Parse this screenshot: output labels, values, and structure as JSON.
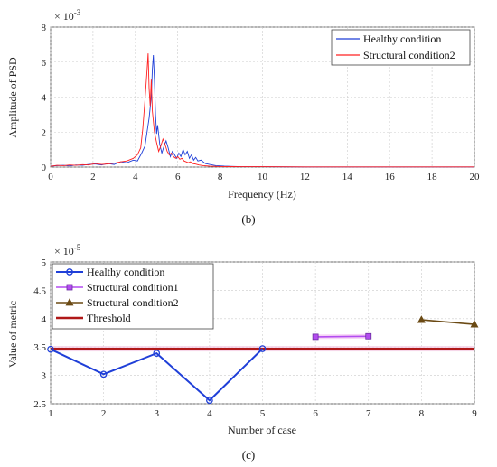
{
  "colors": {
    "healthy": "#1f3fd8",
    "structural1": "#b44cf0",
    "structural2": "#6b4a14",
    "structural2_psd": "#ff2020",
    "threshold": "#b01818",
    "grid": "#cccccc"
  },
  "chart_data": [
    {
      "type": "line",
      "panel_label": "(b)",
      "xlabel": "Frequency (Hz)",
      "ylabel": "Amplitude of PSD",
      "exponent_label": "× 10",
      "exponent_power": "-3",
      "xlim": [
        0,
        20
      ],
      "ylim": [
        0,
        8
      ],
      "xticks": [
        "0",
        "2",
        "4",
        "6",
        "8",
        "10",
        "12",
        "14",
        "16",
        "18",
        "20"
      ],
      "yticks": [
        "0",
        "2",
        "4",
        "6",
        "8"
      ],
      "legend_position": "top-right",
      "series": [
        {
          "name": "Healthy condition",
          "color_key": "healthy",
          "x": [
            0,
            0.3,
            0.6,
            0.9,
            1.2,
            1.5,
            1.8,
            2.1,
            2.4,
            2.7,
            3.0,
            3.3,
            3.6,
            3.9,
            4.1,
            4.3,
            4.45,
            4.55,
            4.65,
            4.75,
            4.8,
            4.85,
            4.9,
            4.95,
            5.0,
            5.05,
            5.15,
            5.25,
            5.35,
            5.45,
            5.55,
            5.65,
            5.75,
            5.85,
            5.95,
            6.05,
            6.15,
            6.25,
            6.35,
            6.45,
            6.55,
            6.65,
            6.75,
            6.85,
            6.95,
            7.1,
            7.3,
            7.5,
            7.8,
            8.2,
            9,
            10,
            12,
            14,
            16,
            18,
            20
          ],
          "y": [
            0.05,
            0.08,
            0.1,
            0.06,
            0.12,
            0.1,
            0.15,
            0.18,
            0.12,
            0.2,
            0.15,
            0.3,
            0.25,
            0.4,
            0.35,
            0.8,
            1.2,
            2.0,
            2.8,
            4.0,
            5.6,
            6.4,
            5.0,
            3.0,
            1.9,
            2.4,
            1.3,
            0.8,
            1.2,
            1.5,
            1.1,
            0.6,
            0.9,
            0.7,
            0.5,
            0.8,
            0.6,
            1.0,
            0.7,
            0.9,
            0.5,
            0.7,
            0.4,
            0.55,
            0.35,
            0.4,
            0.2,
            0.15,
            0.08,
            0.05,
            0.02,
            0.02,
            0.01,
            0.01,
            0.01,
            0.01,
            0.01
          ]
        },
        {
          "name": "Structural condition2",
          "color_key": "structural2_psd",
          "x": [
            0,
            0.3,
            0.6,
            0.9,
            1.2,
            1.5,
            1.8,
            2.1,
            2.4,
            2.7,
            3.0,
            3.3,
            3.6,
            3.9,
            4.1,
            4.25,
            4.35,
            4.45,
            4.55,
            4.6,
            4.65,
            4.7,
            4.75,
            4.8,
            4.9,
            5.0,
            5.1,
            5.2,
            5.3,
            5.4,
            5.5,
            5.6,
            5.7,
            5.8,
            5.9,
            6.0,
            6.1,
            6.2,
            6.3,
            6.4,
            6.5,
            6.6,
            6.7,
            6.8,
            7.0,
            7.2,
            7.5,
            8.0,
            9,
            10,
            12,
            14,
            16,
            18,
            20
          ],
          "y": [
            0.04,
            0.1,
            0.08,
            0.12,
            0.1,
            0.14,
            0.12,
            0.2,
            0.15,
            0.18,
            0.22,
            0.3,
            0.35,
            0.5,
            0.7,
            1.1,
            2.2,
            3.8,
            5.5,
            6.5,
            4.5,
            3.5,
            5.0,
            3.2,
            2.0,
            1.4,
            0.9,
            1.2,
            1.6,
            1.3,
            0.9,
            0.7,
            0.8,
            0.6,
            0.5,
            0.6,
            0.45,
            0.5,
            0.35,
            0.3,
            0.25,
            0.3,
            0.2,
            0.18,
            0.12,
            0.08,
            0.05,
            0.03,
            0.02,
            0.02,
            0.01,
            0.01,
            0.01,
            0.01,
            0.01
          ]
        }
      ]
    },
    {
      "type": "line",
      "panel_label": "(c)",
      "xlabel": "Number of case",
      "ylabel": "Value of metric",
      "exponent_label": "× 10",
      "exponent_power": "-5",
      "xlim": [
        1,
        9
      ],
      "ylim": [
        2.5,
        5
      ],
      "xticks": [
        "1",
        "2",
        "3",
        "4",
        "5",
        "6",
        "7",
        "8",
        "9"
      ],
      "yticks": [
        "2.5",
        "3",
        "3.5",
        "4",
        "4.5",
        "5"
      ],
      "legend_position": "top-left",
      "series": [
        {
          "name": "Healthy condition",
          "color_key": "healthy",
          "marker": "circle",
          "x": [
            1,
            2,
            3,
            4,
            5
          ],
          "y": [
            3.46,
            3.02,
            3.39,
            2.56,
            3.47
          ]
        },
        {
          "name": "Structural condition1",
          "color_key": "structural1",
          "marker": "square",
          "x": [
            6,
            7
          ],
          "y": [
            3.68,
            3.69
          ]
        },
        {
          "name": "Structural condition2",
          "color_key": "structural2",
          "marker": "triangle",
          "x": [
            8,
            9
          ],
          "y": [
            3.98,
            3.9
          ]
        },
        {
          "name": "Threshold",
          "color_key": "threshold",
          "marker": "none",
          "x": [
            1,
            9
          ],
          "y": [
            3.47,
            3.47
          ]
        }
      ]
    }
  ]
}
